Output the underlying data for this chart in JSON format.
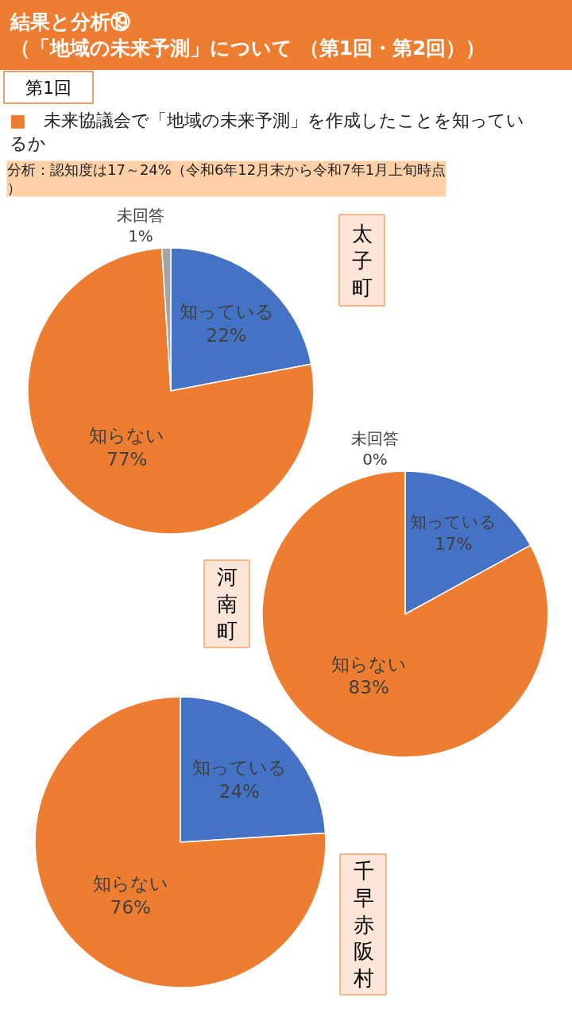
{
  "chart_data": [
    {
      "type": "pie",
      "title": "太子町",
      "annotations": [
        "結果と分析⑲\n（「地域の未来予測」について （第1回・第2回））",
        "第1回",
        "■　未来協議会で「地域の未来予測」を作成したことを知っているか",
        "分析：認知度は17～24%（令和6年12月末から令和7年1月上旬時点）"
      ],
      "categories": [
        "知っている",
        "知らない",
        "未回答"
      ],
      "values": [
        22,
        77,
        1
      ],
      "colors": [
        "#4472c4",
        "#ed7d31",
        "#a5a5a5"
      ],
      "value_labels": [
        "22%",
        "77%",
        "1%"
      ]
    },
    {
      "type": "pie",
      "title": "河南町",
      "categories": [
        "知っている",
        "知らない",
        "未回答"
      ],
      "values": [
        17,
        83,
        0
      ],
      "colors": [
        "#4472c4",
        "#ed7d31",
        "#a5a5a5"
      ],
      "value_labels": [
        "17%",
        "83%",
        "0%"
      ]
    },
    {
      "type": "pie",
      "title": "千早赤阪村",
      "categories": [
        "知っている",
        "知らない"
      ],
      "values": [
        24,
        76
      ],
      "colors": [
        "#4472c4",
        "#ed7d31"
      ],
      "value_labels": [
        "24%",
        "76%"
      ]
    }
  ]
}
